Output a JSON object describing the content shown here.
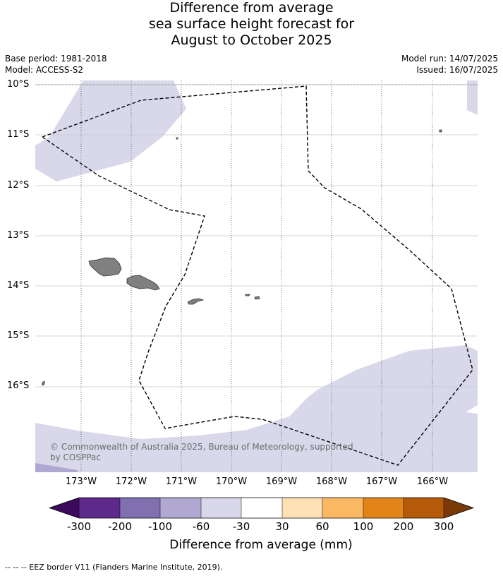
{
  "title": {
    "line1": "Difference from average",
    "line2": "sea surface height forecast for",
    "line3": "August to October 2025"
  },
  "meta": {
    "base_period": "Base period: 1981-2018",
    "model": "Model: ACCESS-S2",
    "model_run": "Model run: 14/07/2025",
    "issued": "Issued: 16/07/2025"
  },
  "map": {
    "lat_labels": [
      "10°S",
      "11°S",
      "12°S",
      "13°S",
      "14°S",
      "15°S",
      "16°S"
    ],
    "lon_labels": [
      "173°W",
      "172°W",
      "171°W",
      "170°W",
      "169°W",
      "168°W",
      "167°W",
      "166°W"
    ],
    "colors": {
      "ocean_neutral": "#ffffff",
      "anomaly_minus_60_to_30": "#d8d8ea",
      "anomaly_minus_100_to_60": "#b0a8d0",
      "land": "#808080"
    },
    "copyright": "© Commonwealth of Australia 2025, Bureau of Meteorology, supported by COSPPac"
  },
  "colorbar": {
    "labels": [
      "-300",
      "-200",
      "-100",
      "-60",
      "-30",
      "30",
      "60",
      "100",
      "200",
      "300"
    ],
    "colors": [
      "#3c0a5c",
      "#5c2a8a",
      "#8070b0",
      "#b0a8d0",
      "#d8d8ea",
      "#ffffff",
      "#fde0b4",
      "#fbb862",
      "#e38418",
      "#b45a08",
      "#7a3a08"
    ],
    "title": "Difference from average (mm)"
  },
  "footnote": "--  --  -- EEZ border V11 (Flanders Marine Institute, 2019)."
}
